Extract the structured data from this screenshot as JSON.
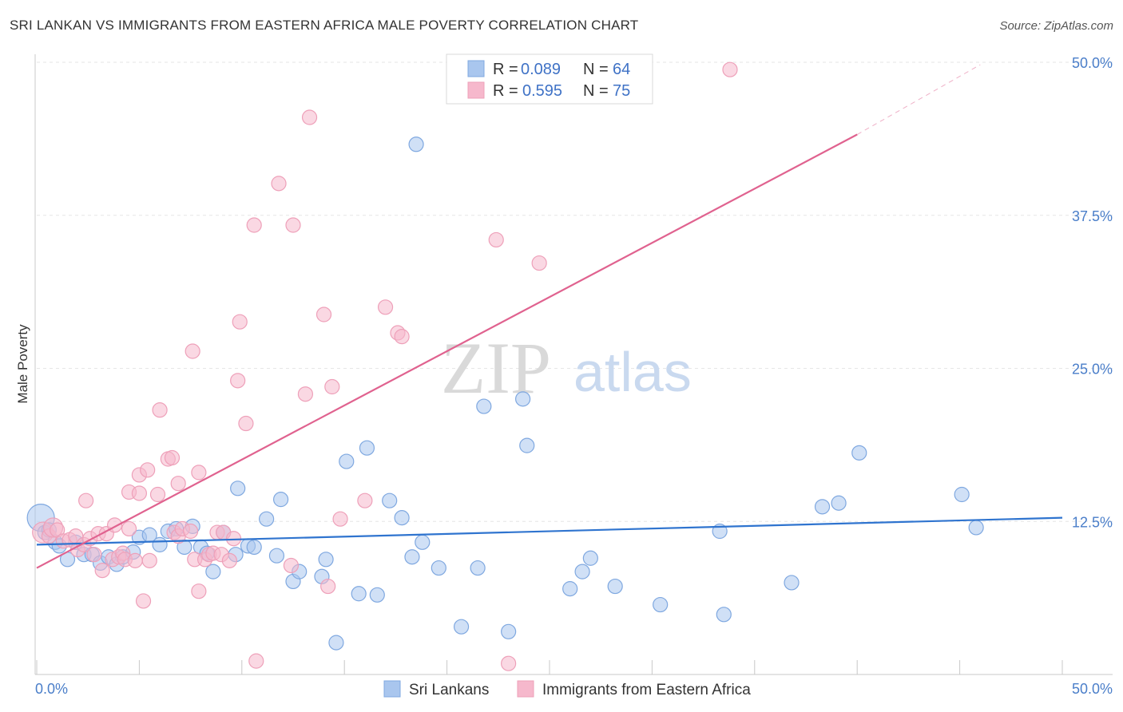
{
  "header": {
    "title": "SRI LANKAN VS IMMIGRANTS FROM EASTERN AFRICA MALE POVERTY CORRELATION CHART",
    "source": "Source: ZipAtlas.com"
  },
  "watermark": {
    "zip": "ZIP",
    "atlas": "atlas"
  },
  "legend_box": {
    "rows": [
      {
        "r_label": "R = ",
        "r_value": "0.089",
        "n_label": "N = ",
        "n_value": "64",
        "color": "#a9c6ee"
      },
      {
        "r_label": "R = ",
        "r_value": "0.595",
        "n_label": "N = ",
        "n_value": "75",
        "color": "#f6b8cc"
      }
    ]
  },
  "chart_data": {
    "type": "scatter",
    "title": "SRI LANKAN VS IMMIGRANTS FROM EASTERN AFRICA MALE POVERTY CORRELATION CHART",
    "xlabel": "",
    "ylabel": "Male Poverty",
    "xlim": [
      0,
      50
    ],
    "ylim": [
      0,
      50
    ],
    "x_tick_labels": [
      "0.0%",
      "50.0%"
    ],
    "y_ticks": [
      {
        "value": 12.5,
        "label": "12.5%"
      },
      {
        "value": 25.0,
        "label": "25.0%"
      },
      {
        "value": 37.5,
        "label": "37.5%"
      },
      {
        "value": 50.0,
        "label": "50.0%"
      }
    ],
    "grid": true,
    "legend_position": "bottom",
    "series": [
      {
        "name": "Sri Lankans",
        "color": "#7fa8e0",
        "fill": "#a9c6ee",
        "trend_color": "#2f74cf",
        "trend": {
          "x0": 0,
          "y0": 10.6,
          "x1": 50,
          "y1": 12.8
        },
        "points": [
          [
            0.2,
            12.8
          ],
          [
            0.4,
            11.6
          ],
          [
            0.6,
            11.8
          ],
          [
            0.9,
            10.8
          ],
          [
            1.1,
            10.5
          ],
          [
            1.5,
            9.4
          ],
          [
            1.9,
            10.8
          ],
          [
            2.3,
            9.8
          ],
          [
            2.7,
            9.8
          ],
          [
            3.1,
            9.1
          ],
          [
            3.5,
            9.6
          ],
          [
            3.9,
            9.0
          ],
          [
            4.2,
            9.6
          ],
          [
            4.7,
            10.0
          ],
          [
            5.0,
            11.2
          ],
          [
            5.5,
            11.4
          ],
          [
            6.0,
            10.6
          ],
          [
            6.4,
            11.7
          ],
          [
            6.8,
            11.9
          ],
          [
            7.2,
            10.4
          ],
          [
            7.6,
            12.1
          ],
          [
            8.0,
            10.4
          ],
          [
            8.3,
            9.9
          ],
          [
            8.6,
            8.4
          ],
          [
            9.1,
            11.6
          ],
          [
            9.7,
            9.8
          ],
          [
            9.8,
            15.2
          ],
          [
            10.3,
            10.5
          ],
          [
            10.6,
            10.4
          ],
          [
            11.2,
            12.7
          ],
          [
            11.7,
            9.7
          ],
          [
            11.9,
            14.3
          ],
          [
            12.5,
            7.6
          ],
          [
            12.8,
            8.4
          ],
          [
            13.9,
            8.0
          ],
          [
            14.1,
            9.4
          ],
          [
            14.6,
            2.6
          ],
          [
            15.1,
            17.4
          ],
          [
            15.7,
            6.6
          ],
          [
            16.1,
            18.5
          ],
          [
            16.6,
            6.5
          ],
          [
            17.2,
            14.2
          ],
          [
            17.8,
            12.8
          ],
          [
            18.3,
            9.6
          ],
          [
            18.5,
            43.3
          ],
          [
            18.8,
            10.8
          ],
          [
            19.6,
            8.7
          ],
          [
            20.7,
            3.9
          ],
          [
            21.5,
            8.7
          ],
          [
            21.8,
            21.9
          ],
          [
            23.0,
            3.5
          ],
          [
            23.7,
            22.5
          ],
          [
            23.9,
            18.7
          ],
          [
            26.0,
            7.0
          ],
          [
            26.6,
            8.4
          ],
          [
            27.0,
            9.5
          ],
          [
            28.2,
            7.2
          ],
          [
            30.4,
            5.7
          ],
          [
            33.3,
            11.7
          ],
          [
            33.5,
            4.9
          ],
          [
            36.8,
            7.5
          ],
          [
            38.3,
            13.7
          ],
          [
            39.1,
            14.0
          ],
          [
            40.1,
            18.1
          ],
          [
            45.1,
            14.7
          ],
          [
            45.8,
            12.0
          ]
        ],
        "sizes": {
          "0": 17
        }
      },
      {
        "name": "Immigrants from Eastern Africa",
        "color": "#eea0b9",
        "fill": "#f6b8cc",
        "trend_color": "#e0628f",
        "trend": {
          "x0": 0,
          "y0": 8.7,
          "x1": 40,
          "y1": 44.1
        },
        "trend_dashed_to": {
          "x": 46.0,
          "y": 49.8
        },
        "points": [
          [
            0.3,
            11.6
          ],
          [
            0.6,
            11.3
          ],
          [
            0.8,
            12.0
          ],
          [
            1.0,
            11.8
          ],
          [
            1.3,
            10.9
          ],
          [
            1.6,
            11.0
          ],
          [
            1.9,
            11.3
          ],
          [
            2.0,
            10.2
          ],
          [
            2.3,
            10.6
          ],
          [
            2.4,
            14.2
          ],
          [
            2.6,
            11.1
          ],
          [
            2.8,
            9.8
          ],
          [
            3.0,
            11.5
          ],
          [
            3.2,
            8.5
          ],
          [
            3.4,
            11.5
          ],
          [
            3.7,
            9.4
          ],
          [
            3.8,
            12.2
          ],
          [
            4.0,
            9.6
          ],
          [
            4.2,
            9.9
          ],
          [
            4.3,
            9.4
          ],
          [
            4.5,
            11.9
          ],
          [
            4.5,
            14.9
          ],
          [
            4.8,
            9.3
          ],
          [
            5.0,
            16.3
          ],
          [
            5.0,
            14.8
          ],
          [
            5.2,
            6.0
          ],
          [
            5.4,
            16.7
          ],
          [
            5.5,
            9.3
          ],
          [
            5.9,
            14.7
          ],
          [
            6.0,
            21.6
          ],
          [
            6.4,
            17.6
          ],
          [
            6.6,
            17.7
          ],
          [
            6.7,
            11.6
          ],
          [
            6.9,
            11.3
          ],
          [
            6.9,
            15.6
          ],
          [
            7.1,
            11.9
          ],
          [
            7.5,
            11.7
          ],
          [
            7.6,
            26.4
          ],
          [
            7.7,
            9.4
          ],
          [
            7.9,
            16.5
          ],
          [
            7.9,
            6.8
          ],
          [
            8.2,
            9.4
          ],
          [
            8.4,
            9.8
          ],
          [
            8.6,
            9.9
          ],
          [
            8.8,
            11.6
          ],
          [
            9.0,
            9.8
          ],
          [
            9.1,
            11.6
          ],
          [
            9.4,
            9.3
          ],
          [
            9.6,
            11.1
          ],
          [
            9.8,
            24.0
          ],
          [
            9.9,
            28.8
          ],
          [
            10.2,
            20.5
          ],
          [
            10.6,
            36.7
          ],
          [
            10.7,
            1.1
          ],
          [
            11.8,
            40.1
          ],
          [
            12.4,
            8.9
          ],
          [
            12.5,
            36.7
          ],
          [
            13.1,
            22.9
          ],
          [
            13.3,
            45.5
          ],
          [
            14.0,
            29.4
          ],
          [
            14.2,
            7.2
          ],
          [
            14.4,
            23.5
          ],
          [
            14.8,
            12.7
          ],
          [
            16.0,
            14.2
          ],
          [
            17.0,
            30.0
          ],
          [
            17.6,
            27.9
          ],
          [
            17.8,
            27.6
          ],
          [
            22.4,
            35.5
          ],
          [
            23.0,
            0.9
          ],
          [
            24.5,
            33.6
          ],
          [
            33.8,
            49.4
          ]
        ],
        "sizes": {
          "0": 13,
          "2": 12
        }
      }
    ]
  }
}
